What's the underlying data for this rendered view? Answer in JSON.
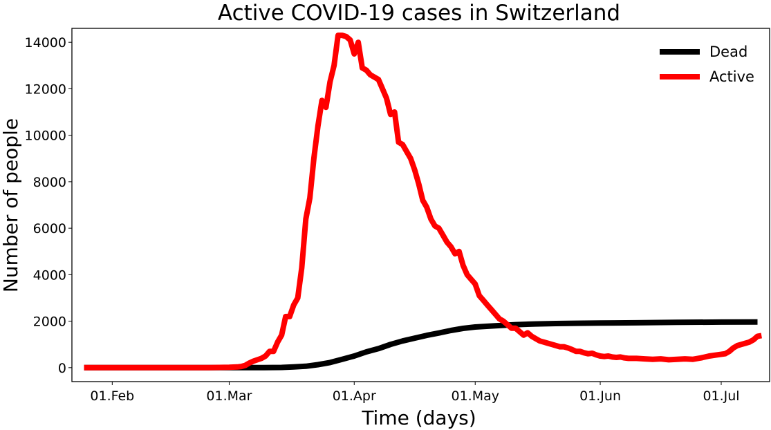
{
  "chart_data": {
    "type": "line",
    "title": "Active COVID-19 cases in Switzerland",
    "xlabel": "Time (days)",
    "ylabel": "Number of people",
    "xlim": [
      "2020-01-22",
      "2020-07-13"
    ],
    "ylim": [
      -600,
      14600
    ],
    "x_ticks": [
      {
        "date": "2020-02-01",
        "label": "01.Feb"
      },
      {
        "date": "2020-03-01",
        "label": "01.Mar"
      },
      {
        "date": "2020-04-01",
        "label": "01.Apr"
      },
      {
        "date": "2020-05-01",
        "label": "01.May"
      },
      {
        "date": "2020-06-01",
        "label": "01.Jun"
      },
      {
        "date": "2020-07-01",
        "label": "01.Jul"
      }
    ],
    "y_ticks": [
      0,
      2000,
      4000,
      6000,
      8000,
      10000,
      12000,
      14000
    ],
    "grid": false,
    "legend_position": "top-right",
    "series": [
      {
        "name": "Dead",
        "color": "#000000",
        "points": [
          [
            "2020-01-25",
            0
          ],
          [
            "2020-03-04",
            0
          ],
          [
            "2020-03-09",
            1
          ],
          [
            "2020-03-14",
            10
          ],
          [
            "2020-03-17",
            30
          ],
          [
            "2020-03-20",
            60
          ],
          [
            "2020-03-23",
            130
          ],
          [
            "2020-03-26",
            220
          ],
          [
            "2020-03-29",
            360
          ],
          [
            "2020-04-01",
            500
          ],
          [
            "2020-04-04",
            680
          ],
          [
            "2020-04-07",
            820
          ],
          [
            "2020-04-10",
            1000
          ],
          [
            "2020-04-13",
            1150
          ],
          [
            "2020-04-16",
            1270
          ],
          [
            "2020-04-19",
            1390
          ],
          [
            "2020-04-22",
            1490
          ],
          [
            "2020-04-25",
            1600
          ],
          [
            "2020-04-28",
            1690
          ],
          [
            "2020-05-01",
            1750
          ],
          [
            "2020-05-06",
            1800
          ],
          [
            "2020-05-11",
            1850
          ],
          [
            "2020-05-16",
            1880
          ],
          [
            "2020-05-21",
            1900
          ],
          [
            "2020-05-26",
            1910
          ],
          [
            "2020-06-01",
            1920
          ],
          [
            "2020-06-10",
            1930
          ],
          [
            "2020-06-20",
            1950
          ],
          [
            "2020-07-01",
            1960
          ],
          [
            "2020-07-10",
            1965
          ]
        ]
      },
      {
        "name": "Active",
        "color": "#ff0000",
        "points": [
          [
            "2020-01-25",
            0
          ],
          [
            "2020-02-25",
            0
          ],
          [
            "2020-03-01",
            15
          ],
          [
            "2020-03-03",
            30
          ],
          [
            "2020-03-04",
            50
          ],
          [
            "2020-03-05",
            100
          ],
          [
            "2020-03-06",
            200
          ],
          [
            "2020-03-07",
            280
          ],
          [
            "2020-03-08",
            340
          ],
          [
            "2020-03-09",
            400
          ],
          [
            "2020-03-10",
            500
          ],
          [
            "2020-03-11",
            700
          ],
          [
            "2020-03-12",
            700
          ],
          [
            "2020-03-13",
            1100
          ],
          [
            "2020-03-14",
            1400
          ],
          [
            "2020-03-15",
            2200
          ],
          [
            "2020-03-16",
            2200
          ],
          [
            "2020-03-17",
            2700
          ],
          [
            "2020-03-18",
            3000
          ],
          [
            "2020-03-19",
            4300
          ],
          [
            "2020-03-20",
            6400
          ],
          [
            "2020-03-21",
            7300
          ],
          [
            "2020-03-22",
            9000
          ],
          [
            "2020-03-23",
            10400
          ],
          [
            "2020-03-24",
            11500
          ],
          [
            "2020-03-25",
            11200
          ],
          [
            "2020-03-26",
            12300
          ],
          [
            "2020-03-27",
            13000
          ],
          [
            "2020-03-28",
            14300
          ],
          [
            "2020-03-29",
            14300
          ],
          [
            "2020-03-30",
            14250
          ],
          [
            "2020-03-31",
            14100
          ],
          [
            "2020-04-01",
            13500
          ],
          [
            "2020-04-02",
            14000
          ],
          [
            "2020-04-03",
            12900
          ],
          [
            "2020-04-04",
            12800
          ],
          [
            "2020-04-05",
            12600
          ],
          [
            "2020-04-06",
            12500
          ],
          [
            "2020-04-07",
            12400
          ],
          [
            "2020-04-08",
            12000
          ],
          [
            "2020-04-09",
            11600
          ],
          [
            "2020-04-10",
            10900
          ],
          [
            "2020-04-11",
            11000
          ],
          [
            "2020-04-12",
            9700
          ],
          [
            "2020-04-13",
            9600
          ],
          [
            "2020-04-14",
            9300
          ],
          [
            "2020-04-15",
            9000
          ],
          [
            "2020-04-16",
            8500
          ],
          [
            "2020-04-17",
            7900
          ],
          [
            "2020-04-18",
            7200
          ],
          [
            "2020-04-19",
            6900
          ],
          [
            "2020-04-20",
            6400
          ],
          [
            "2020-04-21",
            6100
          ],
          [
            "2020-04-22",
            6000
          ],
          [
            "2020-04-23",
            5700
          ],
          [
            "2020-04-24",
            5400
          ],
          [
            "2020-04-25",
            5200
          ],
          [
            "2020-04-26",
            4900
          ],
          [
            "2020-04-27",
            5000
          ],
          [
            "2020-04-28",
            4400
          ],
          [
            "2020-04-29",
            4000
          ],
          [
            "2020-04-30",
            3800
          ],
          [
            "2020-05-01",
            3600
          ],
          [
            "2020-05-02",
            3100
          ],
          [
            "2020-05-03",
            2900
          ],
          [
            "2020-05-04",
            2700
          ],
          [
            "2020-05-05",
            2500
          ],
          [
            "2020-05-06",
            2300
          ],
          [
            "2020-05-07",
            2100
          ],
          [
            "2020-05-08",
            2000
          ],
          [
            "2020-05-09",
            1850
          ],
          [
            "2020-05-10",
            1700
          ],
          [
            "2020-05-11",
            1700
          ],
          [
            "2020-05-12",
            1550
          ],
          [
            "2020-05-13",
            1400
          ],
          [
            "2020-05-14",
            1500
          ],
          [
            "2020-05-15",
            1350
          ],
          [
            "2020-05-16",
            1250
          ],
          [
            "2020-05-17",
            1150
          ],
          [
            "2020-05-18",
            1100
          ],
          [
            "2020-05-19",
            1050
          ],
          [
            "2020-05-20",
            1000
          ],
          [
            "2020-05-21",
            950
          ],
          [
            "2020-05-22",
            900
          ],
          [
            "2020-05-23",
            900
          ],
          [
            "2020-05-24",
            850
          ],
          [
            "2020-05-25",
            780
          ],
          [
            "2020-05-26",
            700
          ],
          [
            "2020-05-27",
            700
          ],
          [
            "2020-05-28",
            640
          ],
          [
            "2020-05-29",
            600
          ],
          [
            "2020-05-30",
            620
          ],
          [
            "2020-05-31",
            550
          ],
          [
            "2020-06-01",
            500
          ],
          [
            "2020-06-02",
            480
          ],
          [
            "2020-06-03",
            500
          ],
          [
            "2020-06-04",
            460
          ],
          [
            "2020-06-05",
            440
          ],
          [
            "2020-06-06",
            460
          ],
          [
            "2020-06-07",
            420
          ],
          [
            "2020-06-08",
            400
          ],
          [
            "2020-06-10",
            400
          ],
          [
            "2020-06-12",
            380
          ],
          [
            "2020-06-14",
            360
          ],
          [
            "2020-06-16",
            380
          ],
          [
            "2020-06-18",
            340
          ],
          [
            "2020-06-20",
            360
          ],
          [
            "2020-06-22",
            380
          ],
          [
            "2020-06-24",
            360
          ],
          [
            "2020-06-26",
            420
          ],
          [
            "2020-06-28",
            500
          ],
          [
            "2020-06-30",
            550
          ],
          [
            "2020-07-02",
            600
          ],
          [
            "2020-07-03",
            700
          ],
          [
            "2020-07-04",
            850
          ],
          [
            "2020-07-05",
            950
          ],
          [
            "2020-07-06",
            1000
          ],
          [
            "2020-07-07",
            1050
          ],
          [
            "2020-07-08",
            1100
          ],
          [
            "2020-07-09",
            1200
          ],
          [
            "2020-07-10",
            1350
          ],
          [
            "2020-07-11",
            1380
          ]
        ]
      }
    ]
  }
}
